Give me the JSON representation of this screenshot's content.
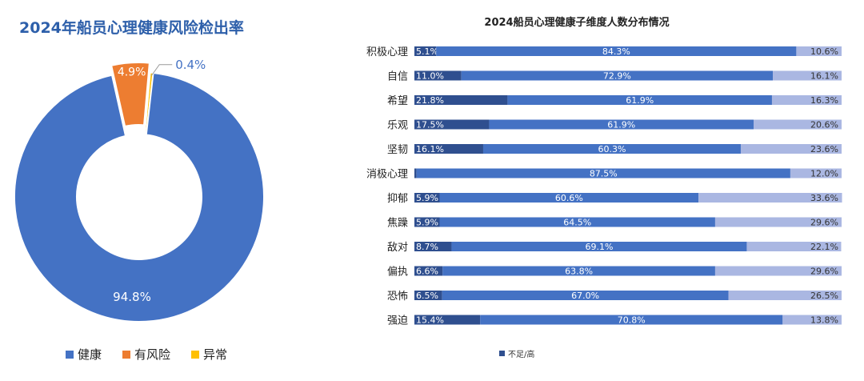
{
  "left_title": "2024年船员心理健康风险检出率",
  "right_title": "2024船员心理健康子维度人数分布情况",
  "colors": {
    "healthy": "#4472c4",
    "risk": "#ed7d31",
    "abnormal": "#ffc000",
    "bar_low": "#2f4f8f",
    "bar_mid": "#4472c4",
    "bar_high": "#aab7e2"
  },
  "chart_data": [
    {
      "type": "pie",
      "title": "2024年船员心理健康风险检出率",
      "categories": [
        "健康",
        "有风险",
        "异常"
      ],
      "values": [
        94.8,
        4.9,
        0.4
      ],
      "labels": [
        "94.8%",
        "4.9%",
        "0.4%"
      ],
      "donut": true,
      "legend": "bottom"
    },
    {
      "type": "bar",
      "orientation": "horizontal",
      "stacked": true,
      "title": "2024船员心理健康子维度人数分布情况",
      "categories": [
        "积极心理",
        "自信",
        "希望",
        "乐观",
        "坚韧",
        "消极心理",
        "抑郁",
        "焦躁",
        "敌对",
        "偏执",
        "恐怖",
        "强迫"
      ],
      "series": [
        {
          "values": [
            5.1,
            11.0,
            21.8,
            17.5,
            16.1,
            0.5,
            5.9,
            5.9,
            8.7,
            6.6,
            6.5,
            15.4
          ],
          "labels": [
            "5.1%",
            "11.0%",
            "21.8%",
            "17.5%",
            "16.1%",
            "0.5%",
            "5.9%",
            "5.9%",
            "8.7%",
            "6.6%",
            "6.5%",
            "15.4%"
          ]
        },
        {
          "values": [
            84.3,
            72.9,
            61.9,
            61.9,
            60.3,
            87.5,
            60.6,
            64.5,
            69.1,
            63.8,
            67.0,
            70.8
          ],
          "labels": [
            "84.3%",
            "72.9%",
            "61.9%",
            "61.9%",
            "60.3%",
            "87.5%",
            "60.6%",
            "64.5%",
            "69.1%",
            "63.8%",
            "67.0%",
            "70.8%"
          ]
        },
        {
          "values": [
            10.6,
            16.1,
            16.3,
            20.6,
            23.6,
            12.0,
            33.6,
            29.6,
            22.1,
            29.6,
            26.5,
            13.8
          ],
          "labels": [
            "10.6%",
            "16.1%",
            "16.3%",
            "20.6%",
            "23.6%",
            "12.0%",
            "33.6%",
            "29.6%",
            "22.1%",
            "29.6%",
            "26.5%",
            "13.8%"
          ]
        }
      ],
      "legend": "bottom",
      "legend_text": "不足/高",
      "xlim": [
        0,
        100
      ]
    }
  ]
}
